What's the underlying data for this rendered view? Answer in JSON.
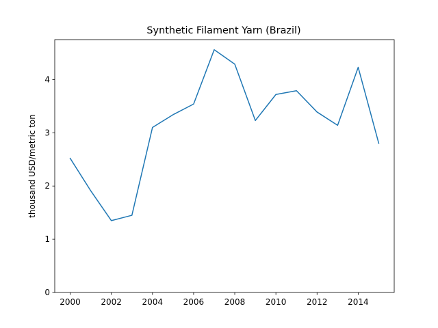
{
  "chart_data": {
    "type": "line",
    "title": "Synthetic Filament Yarn (Brazil)",
    "xlabel": "",
    "ylabel": "thousand USD/metric ton",
    "xlim": [
      1999.25,
      2015.75
    ],
    "ylim": [
      0,
      4.75
    ],
    "x_ticks": [
      2000,
      2002,
      2004,
      2006,
      2008,
      2010,
      2012,
      2014
    ],
    "y_ticks": [
      0,
      1,
      2,
      3,
      4
    ],
    "grid": false,
    "legend": "none",
    "series": [
      {
        "color": "#1f77b4",
        "x": [
          2000,
          2001,
          2002,
          2003,
          2004,
          2005,
          2006,
          2007,
          2008,
          2009,
          2010,
          2011,
          2012,
          2013,
          2014,
          2015
        ],
        "y": [
          2.52,
          1.91,
          1.35,
          1.45,
          3.1,
          3.34,
          3.54,
          4.56,
          4.29,
          3.23,
          3.72,
          3.79,
          3.39,
          3.14,
          4.23,
          2.8
        ]
      }
    ]
  }
}
